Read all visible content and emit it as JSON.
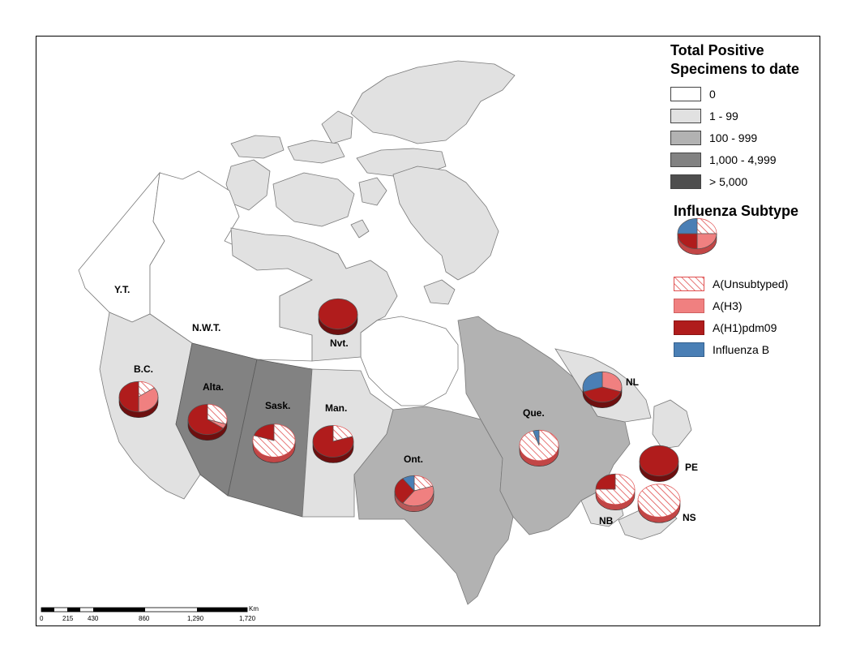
{
  "legend": {
    "total_title_line1": "Total Positive",
    "total_title_line2": "Specimens to date",
    "classes": [
      {
        "label": "0",
        "color": "#ffffff"
      },
      {
        "label": "1 - 99",
        "color": "#e1e1e1"
      },
      {
        "label": "100 - 999",
        "color": "#b2b2b2"
      },
      {
        "label": "1,000 - 4,999",
        "color": "#828282"
      },
      {
        "label": "> 5,000",
        "color": "#4e4e4e"
      }
    ],
    "subtype_title": "Influenza Subtype",
    "subtypes": [
      {
        "key": "unsub",
        "label": "A(Unsubtyped)",
        "color": "#e05050",
        "pattern": "hatched"
      },
      {
        "key": "h3",
        "label": "A(H3)",
        "color": "#f08080"
      },
      {
        "key": "h1",
        "label": "A(H1)pdm09",
        "color": "#b01c1c"
      },
      {
        "key": "b",
        "label": "Influenza B",
        "color": "#4a7fb5"
      }
    ]
  },
  "provinces": [
    {
      "id": "yt",
      "label": "Y.T.",
      "class": "0"
    },
    {
      "id": "nwt",
      "label": "N.W.T.",
      "class": "0"
    },
    {
      "id": "nvt",
      "label": "Nvt.",
      "class": "1 - 99"
    },
    {
      "id": "bc",
      "label": "B.C.",
      "class": "1 - 99"
    },
    {
      "id": "alta",
      "label": "Alta.",
      "class": "1,000 - 4,999"
    },
    {
      "id": "sask",
      "label": "Sask.",
      "class": "1,000 - 4,999"
    },
    {
      "id": "man",
      "label": "Man.",
      "class": "1 - 99"
    },
    {
      "id": "ont",
      "label": "Ont.",
      "class": "100 - 999"
    },
    {
      "id": "que",
      "label": "Que.",
      "class": "100 - 999"
    },
    {
      "id": "nl",
      "label": "NL",
      "class": "1 - 99"
    },
    {
      "id": "pe",
      "label": "PE",
      "class": "1 - 99"
    },
    {
      "id": "nb",
      "label": "NB",
      "class": "1 - 99"
    },
    {
      "id": "ns",
      "label": "NS",
      "class": "1 - 99"
    }
  ],
  "pies": [
    {
      "id": "legend",
      "unsub": 25,
      "h3": 25,
      "h1": 25,
      "b": 25
    },
    {
      "id": "bc",
      "unsub": 15,
      "h3": 35,
      "h1": 50,
      "b": 0
    },
    {
      "id": "alta",
      "unsub": 30,
      "h3": 5,
      "h1": 65,
      "b": 0
    },
    {
      "id": "sask",
      "unsub": 80,
      "h3": 0,
      "h1": 20,
      "b": 0
    },
    {
      "id": "man",
      "unsub": 20,
      "h3": 0,
      "h1": 80,
      "b": 0
    },
    {
      "id": "nvt",
      "unsub": 0,
      "h3": 0,
      "h1": 100,
      "b": 0
    },
    {
      "id": "ont",
      "unsub": 20,
      "h3": 40,
      "h1": 30,
      "b": 10
    },
    {
      "id": "que",
      "unsub": 95,
      "h3": 0,
      "h1": 0,
      "b": 5
    },
    {
      "id": "nl",
      "unsub": 0,
      "h3": 30,
      "h1": 40,
      "b": 30
    },
    {
      "id": "pe",
      "unsub": 0,
      "h3": 0,
      "h1": 100,
      "b": 0
    },
    {
      "id": "nb",
      "unsub": 75,
      "h3": 0,
      "h1": 25,
      "b": 0
    },
    {
      "id": "ns",
      "unsub": 100,
      "h3": 0,
      "h1": 0,
      "b": 0
    }
  ],
  "scale": {
    "unit": "Km",
    "ticks": [
      "0",
      "215",
      "430",
      "860",
      "1,290",
      "1,720"
    ]
  }
}
